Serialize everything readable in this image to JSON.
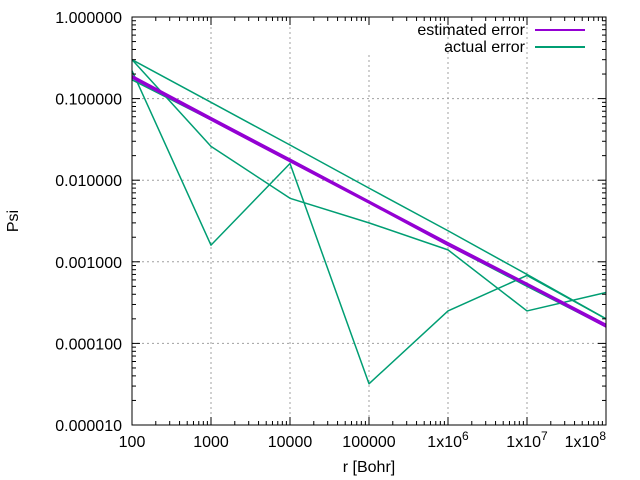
{
  "chart_data": {
    "type": "line",
    "xlabel": "r [Bohr]",
    "ylabel": "Psi",
    "x_scale": "log",
    "y_scale": "log",
    "xlim": [
      100,
      100000000
    ],
    "ylim": [
      1e-05,
      1
    ],
    "grid": true,
    "legend_position": "top-right",
    "x_ticks": [
      {
        "value": 100,
        "label": "100"
      },
      {
        "value": 1000,
        "label": "1000"
      },
      {
        "value": 10000,
        "label": "10000"
      },
      {
        "value": 100000,
        "label": "100000"
      },
      {
        "value": 1000000,
        "label": "1x10^6"
      },
      {
        "value": 10000000,
        "label": "1x10^7"
      },
      {
        "value": 100000000,
        "label": "1x10^8"
      }
    ],
    "y_ticks": [
      {
        "value": 1,
        "label": "1.000000"
      },
      {
        "value": 0.1,
        "label": "0.100000"
      },
      {
        "value": 0.01,
        "label": "0.010000"
      },
      {
        "value": 0.001,
        "label": "0.001000"
      },
      {
        "value": 0.0001,
        "label": "0.000100"
      },
      {
        "value": 1e-05,
        "label": "0.000010"
      }
    ],
    "series": [
      {
        "name": "estimated error",
        "color": "#9400d3",
        "lines": [
          {
            "x": [
              100,
              1000,
              10000,
              100000,
              1000000,
              10000000,
              100000000
            ],
            "y": [
              0.18,
              0.055,
              0.017,
              0.0053,
              0.0016,
              0.00052,
              0.00016
            ]
          },
          {
            "x": [
              100,
              1000,
              10000,
              100000,
              1000000,
              10000000,
              100000000
            ],
            "y": [
              0.19,
              0.058,
              0.018,
              0.0055,
              0.0017,
              0.00054,
              0.00017
            ]
          }
        ]
      },
      {
        "name": "actual error",
        "color": "#009e73",
        "lines": [
          {
            "x": [
              100,
              1000,
              10000,
              100000,
              1000000,
              10000000,
              100000000
            ],
            "y": [
              0.3,
              0.09,
              0.027,
              0.008,
              0.0024,
              0.0007,
              0.0002
            ]
          },
          {
            "x": [
              100,
              1000,
              10000,
              100000,
              1000000,
              10000000,
              100000000
            ],
            "y": [
              0.17,
              0.055,
              0.018,
              0.0055,
              0.0016,
              0.0005,
              0.00016
            ]
          },
          {
            "x": [
              100,
              1000,
              10000,
              100000,
              1000000,
              10000000,
              100000000
            ],
            "y": [
              0.3,
              0.026,
              0.006,
              0.003,
              0.0014,
              0.00025,
              0.00042
            ]
          },
          {
            "x": [
              100,
              1000,
              10000,
              100000,
              1000000,
              10000000,
              100000000
            ],
            "y": [
              0.22,
              0.0016,
              0.016,
              3.2e-05,
              0.00025,
              0.00068,
              0.0002
            ]
          }
        ]
      }
    ]
  }
}
